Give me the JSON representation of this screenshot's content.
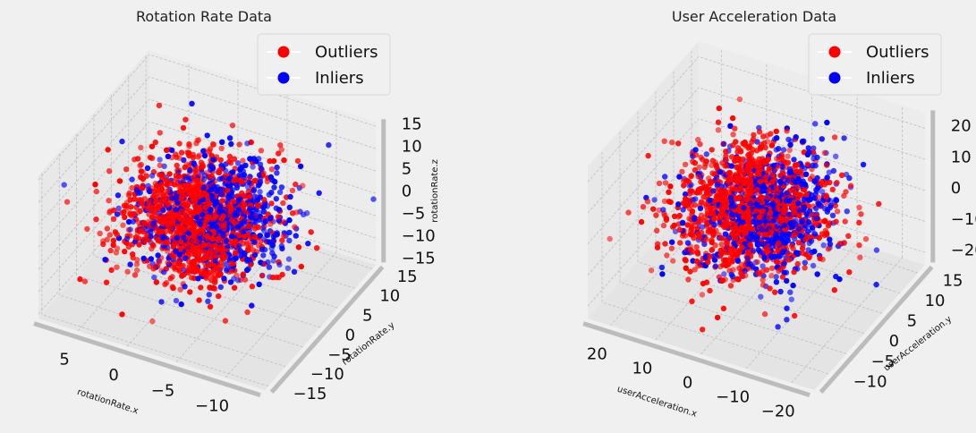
{
  "chart_data": [
    {
      "type": "scatter",
      "projection": "3d",
      "title": "Rotation Rate Data",
      "xlabel": "rotationRate.x",
      "ylabel": "rotationRate.y",
      "zlabel": "rotationRate.z",
      "xlim": [
        -14,
        9
      ],
      "ylim": [
        -16,
        16
      ],
      "zlim": [
        -16,
        16
      ],
      "xticks": [
        -10,
        -5,
        0,
        5
      ],
      "yticks": [
        -15,
        -10,
        -5,
        0,
        5,
        10,
        15
      ],
      "zticks": [
        -15,
        -10,
        -5,
        0,
        5,
        10,
        15
      ],
      "grid": true,
      "legend": "top-right",
      "series": [
        {
          "name": "Outliers",
          "color": "#ff0000"
        },
        {
          "name": "Inliers",
          "color": "#0000ff"
        }
      ]
    },
    {
      "type": "scatter",
      "projection": "3d",
      "title": "User Acceleration Data",
      "xlabel": "userAcceleration.x",
      "ylabel": "userAcceleration.y",
      "zlabel": "userAcceleration.z",
      "xlim": [
        -25,
        25
      ],
      "ylim": [
        -14,
        17
      ],
      "zlim": [
        -24,
        25
      ],
      "xticks": [
        -20,
        -10,
        0,
        10,
        20
      ],
      "yticks": [
        -10,
        -5,
        0,
        5,
        10,
        15
      ],
      "zticks": [
        -20,
        -10,
        0,
        10,
        20
      ],
      "grid": true,
      "legend": "top-right",
      "series": [
        {
          "name": "Outliers",
          "color": "#ff0000"
        },
        {
          "name": "Inliers",
          "color": "#0000ff"
        }
      ]
    }
  ]
}
